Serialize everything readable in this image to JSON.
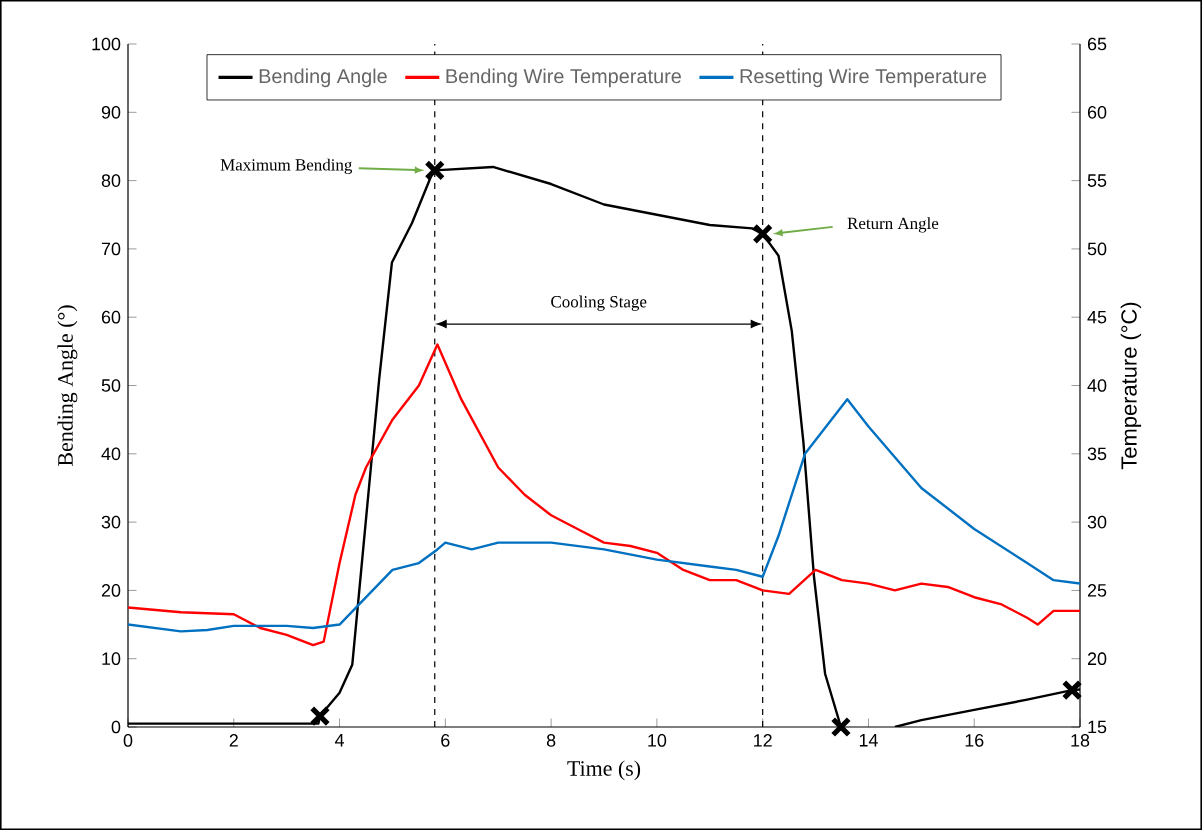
{
  "chart_data": {
    "type": "line",
    "xlabel": "Time (s)",
    "ylabel": "Bending Angle (°)",
    "y2label": "Temperature (°C)",
    "xlim": [
      0,
      18
    ],
    "xticks": [
      0,
      2,
      4,
      6,
      8,
      10,
      12,
      14,
      16,
      18
    ],
    "ylim": [
      0,
      100
    ],
    "yticks": [
      0,
      10,
      20,
      30,
      40,
      50,
      60,
      70,
      80,
      90,
      100
    ],
    "y2lim": [
      15,
      65
    ],
    "y2ticks": [
      15,
      20,
      25,
      30,
      35,
      40,
      45,
      50,
      55,
      60,
      65
    ],
    "legend": "top",
    "line_style": "solid",
    "series": [
      {
        "name": "Bending Angle",
        "type": "line",
        "color": "#000000",
        "x": [
          0,
          3.6,
          3.63,
          4.0,
          4.24,
          4.44,
          4.75,
          4.99,
          5.37,
          5.75,
          5.8,
          6.9,
          8,
          9,
          10,
          11,
          11.8,
          12,
          12.3,
          12.55,
          12.77,
          12.97,
          13.18,
          13.48,
          14,
          14.5,
          15,
          16,
          17,
          17.85,
          18
        ],
        "values": [
          0.5,
          0.5,
          1.6,
          5,
          9.1,
          25.5,
          51,
          68,
          73.8,
          81,
          81.5,
          82,
          79.5,
          76.5,
          75,
          73.5,
          73,
          72.2,
          69,
          58,
          41.7,
          22,
          7.8,
          0,
          null,
          0,
          1,
          2.5,
          4,
          5.4,
          5.5
        ]
      },
      {
        "type": "scatter",
        "marker": "cross",
        "color": "#000000",
        "x": [
          3.63,
          5.8,
          12,
          13.48,
          17.85
        ],
        "values": [
          1.6,
          81.5,
          72.2,
          0,
          5.4
        ]
      },
      {
        "name": "Bending Wire Temperature",
        "type": "line",
        "axis": "y2",
        "color": "#ff0000",
        "x": [
          0,
          1,
          2,
          2.5,
          3,
          3.5,
          3.7,
          4,
          4.3,
          4.5,
          5,
          5.5,
          5.85,
          6.3,
          7,
          7.5,
          8,
          8.5,
          9,
          9.5,
          10,
          10.5,
          11,
          11.5,
          12,
          12.5,
          13,
          13.5,
          14,
          14.5,
          15,
          15.5,
          16,
          16.5,
          17,
          17.2,
          17.5,
          18
        ],
        "values": [
          23.75,
          23.4,
          23.25,
          22.25,
          21.75,
          21,
          21.25,
          27,
          32,
          34,
          37.5,
          40,
          43,
          39,
          34,
          32,
          30.5,
          29.5,
          28.5,
          28.25,
          27.75,
          26.5,
          25.75,
          25.75,
          25,
          24.75,
          26.5,
          25.75,
          25.5,
          25,
          25.5,
          25.25,
          24.5,
          24,
          23,
          22.5,
          23.5,
          23.5
        ]
      },
      {
        "name": "Resetting Wire Temperature",
        "type": "line",
        "axis": "y2",
        "color": "#0070c0",
        "x": [
          0,
          0.5,
          1,
          1.5,
          2,
          3,
          3.5,
          4,
          4.5,
          5,
          5.5,
          5.85,
          6,
          6.5,
          7,
          8,
          9,
          10,
          11,
          11.5,
          12,
          12.3,
          12.8,
          13.2,
          13.6,
          14,
          15,
          16,
          17,
          17.5,
          18
        ],
        "values": [
          22.5,
          22.25,
          22,
          22.1,
          22.4,
          22.4,
          22.25,
          22.5,
          24.5,
          26.5,
          27,
          28,
          28.5,
          28,
          28.5,
          28.5,
          28,
          27.25,
          26.75,
          26.5,
          26,
          29,
          35,
          37,
          39,
          37,
          32.5,
          29.5,
          27,
          25.75,
          25.5
        ]
      }
    ],
    "ref_lines": [
      {
        "axis": "x",
        "value": 5.8,
        "line_style": "dashed",
        "color": "#000000"
      },
      {
        "axis": "x",
        "value": 12,
        "line_style": "dashed",
        "color": "#000000"
      }
    ],
    "annotations": [
      "Maximum Bending",
      "Return Angle",
      "Cooling Stage"
    ]
  }
}
